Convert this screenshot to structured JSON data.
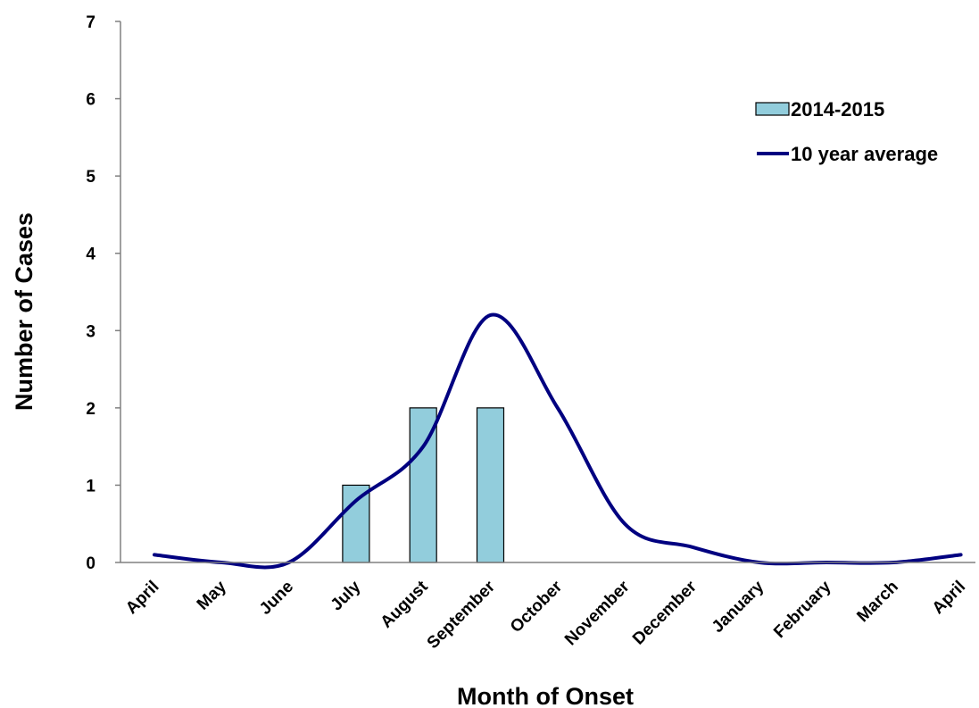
{
  "chart_data": {
    "type": "bar",
    "title": "",
    "xlabel": "Month of Onset",
    "ylabel": "Number of Cases",
    "categories": [
      "April",
      "May",
      "June",
      "July",
      "August",
      "September",
      "October",
      "November",
      "December",
      "January",
      "February",
      "March",
      "April"
    ],
    "ylim": [
      0,
      7
    ],
    "yticks": [
      0,
      1,
      2,
      3,
      4,
      5,
      6,
      7
    ],
    "grid": false,
    "legend_position": "top-right",
    "series": [
      {
        "name": "2014-2015",
        "type": "bar",
        "color": "#92CDDC",
        "values": [
          0,
          0,
          0,
          1,
          2,
          2,
          0,
          0,
          0,
          0,
          0,
          0,
          0
        ]
      },
      {
        "name": "10 year average",
        "type": "line",
        "color": "#000080",
        "smooth": true,
        "values": [
          0.1,
          0.0,
          0.0,
          0.8,
          1.5,
          3.2,
          2.0,
          0.5,
          0.2,
          0.0,
          0.0,
          0.0,
          0.1
        ]
      }
    ]
  }
}
